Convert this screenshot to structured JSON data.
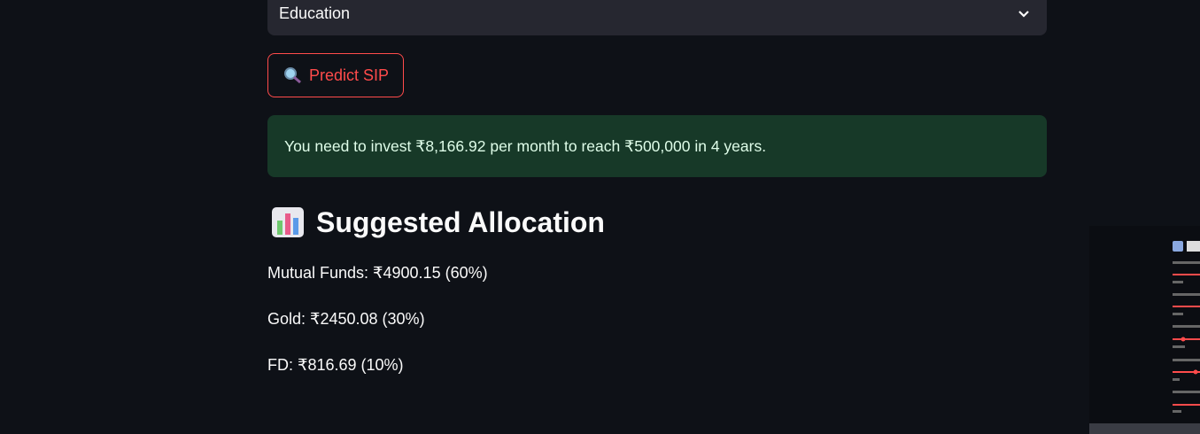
{
  "select": {
    "value": "Education"
  },
  "button": {
    "label": "Predict SIP"
  },
  "result": {
    "message": "You need to invest ₹8,166.92 per month to reach ₹500,000 in 4 years."
  },
  "allocation": {
    "heading": "Suggested Allocation",
    "items": [
      "Mutual Funds: ₹4900.15 (60%)",
      "Gold: ₹2450.08 (30%)",
      "FD: ₹816.69 (10%)"
    ]
  }
}
